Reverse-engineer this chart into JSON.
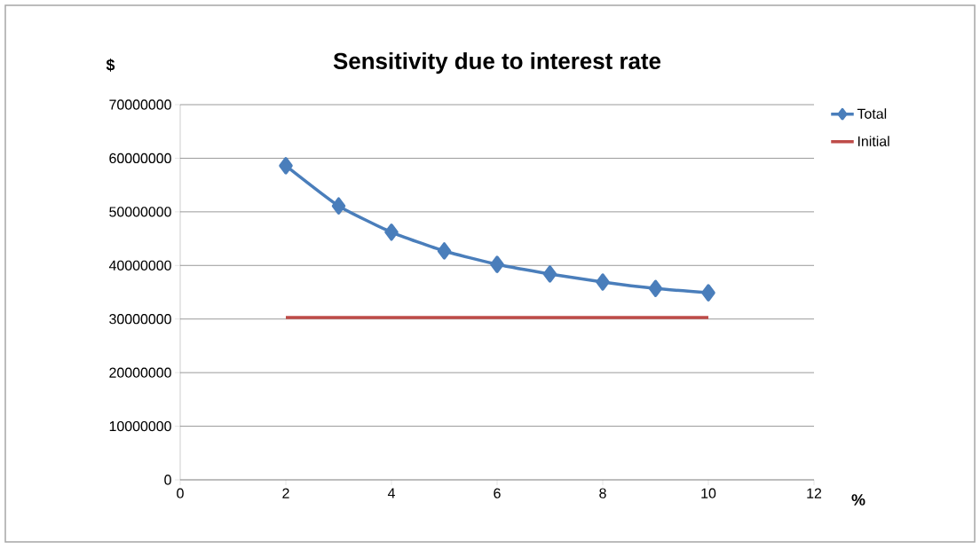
{
  "chart_data": {
    "type": "line",
    "title": "Sensitivity due to interest rate",
    "xlabel": "%",
    "ylabel": "$",
    "x": [
      2,
      3,
      4,
      5,
      6,
      7,
      8,
      9,
      10
    ],
    "series": [
      {
        "name": "Total",
        "color": "#4a7ebb",
        "marker": "diamond",
        "values": [
          58600000,
          51100000,
          46200000,
          42700000,
          40200000,
          38400000,
          36900000,
          35700000,
          34900000
        ]
      },
      {
        "name": "Initial",
        "color": "#be4b48",
        "marker": "none",
        "values": [
          30300000,
          30300000,
          30300000,
          30300000,
          30300000,
          30300000,
          30300000,
          30300000,
          30300000
        ]
      }
    ],
    "xlim": [
      0,
      12
    ],
    "xticks": [
      0,
      2,
      4,
      6,
      8,
      10,
      12
    ],
    "ylim": [
      0,
      70000000
    ],
    "yticks": [
      0,
      10000000,
      20000000,
      30000000,
      40000000,
      50000000,
      60000000,
      70000000
    ],
    "grid": "y",
    "legend": "top right"
  }
}
